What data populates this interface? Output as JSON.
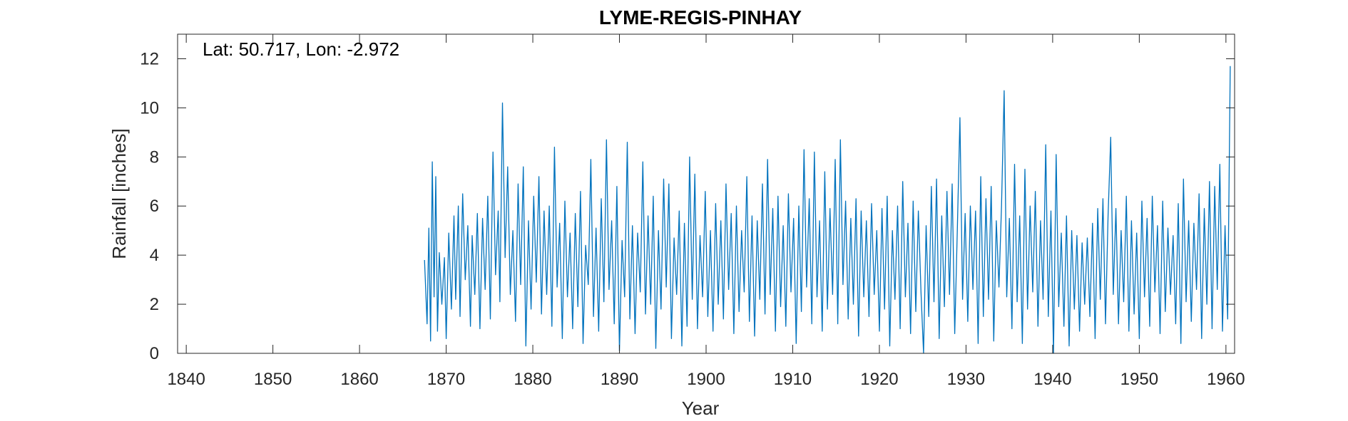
{
  "chart_data": {
    "type": "line",
    "title": "LYME-REGIS-PINHAY",
    "annotation": "Lat: 50.717, Lon: -2.972",
    "xlabel": "Year",
    "ylabel": "Rainfall [inches]",
    "xlim": [
      1839,
      1961
    ],
    "ylim": [
      0,
      13
    ],
    "xticks": [
      1840,
      1850,
      1860,
      1870,
      1880,
      1890,
      1900,
      1910,
      1920,
      1930,
      1940,
      1950,
      1960
    ],
    "yticks": [
      0,
      2,
      4,
      6,
      8,
      10,
      12
    ],
    "grid": false,
    "series": [
      {
        "color": "#0072BD",
        "data_start_year": 1867.5,
        "data_end_year": 1960.5,
        "points": [
          [
            1867.5,
            3.8
          ],
          [
            1867.8,
            1.2
          ],
          [
            1868.0,
            5.1
          ],
          [
            1868.2,
            0.5
          ],
          [
            1868.4,
            7.8
          ],
          [
            1868.6,
            2.3
          ],
          [
            1868.8,
            7.2
          ],
          [
            1869.0,
            0.9
          ],
          [
            1869.2,
            4.1
          ],
          [
            1869.5,
            2.0
          ],
          [
            1869.8,
            3.9
          ],
          [
            1870.0,
            0.6
          ],
          [
            1870.3,
            4.9
          ],
          [
            1870.6,
            1.8
          ],
          [
            1870.9,
            5.6
          ],
          [
            1871.1,
            2.2
          ],
          [
            1871.4,
            6.0
          ],
          [
            1871.6,
            1.5
          ],
          [
            1871.9,
            6.5
          ],
          [
            1872.2,
            3.0
          ],
          [
            1872.5,
            5.2
          ],
          [
            1872.8,
            1.1
          ],
          [
            1873.0,
            4.8
          ],
          [
            1873.3,
            2.4
          ],
          [
            1873.6,
            5.7
          ],
          [
            1873.9,
            1.0
          ],
          [
            1874.2,
            5.5
          ],
          [
            1874.5,
            2.6
          ],
          [
            1874.8,
            6.4
          ],
          [
            1875.1,
            1.4
          ],
          [
            1875.4,
            8.2
          ],
          [
            1875.7,
            3.2
          ],
          [
            1876.0,
            5.8
          ],
          [
            1876.2,
            2.1
          ],
          [
            1876.5,
            10.2
          ],
          [
            1876.8,
            3.9
          ],
          [
            1877.1,
            7.6
          ],
          [
            1877.4,
            2.4
          ],
          [
            1877.7,
            5.0
          ],
          [
            1878.0,
            1.3
          ],
          [
            1878.3,
            6.9
          ],
          [
            1878.6,
            2.8
          ],
          [
            1878.9,
            7.6
          ],
          [
            1879.2,
            0.3
          ],
          [
            1879.5,
            5.4
          ],
          [
            1879.8,
            1.8
          ],
          [
            1880.1,
            6.4
          ],
          [
            1880.4,
            2.9
          ],
          [
            1880.7,
            7.2
          ],
          [
            1881.0,
            1.6
          ],
          [
            1881.3,
            5.8
          ],
          [
            1881.6,
            2.4
          ],
          [
            1881.9,
            6.0
          ],
          [
            1882.2,
            1.1
          ],
          [
            1882.5,
            8.4
          ],
          [
            1882.8,
            2.7
          ],
          [
            1883.1,
            5.3
          ],
          [
            1883.4,
            0.6
          ],
          [
            1883.7,
            6.2
          ],
          [
            1884.0,
            2.3
          ],
          [
            1884.3,
            4.9
          ],
          [
            1884.6,
            1.0
          ],
          [
            1884.9,
            5.7
          ],
          [
            1885.2,
            1.9
          ],
          [
            1885.5,
            6.6
          ],
          [
            1885.8,
            0.4
          ],
          [
            1886.1,
            4.4
          ],
          [
            1886.4,
            2.8
          ],
          [
            1886.7,
            7.9
          ],
          [
            1887.0,
            1.5
          ],
          [
            1887.3,
            5.1
          ],
          [
            1887.6,
            0.9
          ],
          [
            1887.9,
            6.3
          ],
          [
            1888.2,
            2.1
          ],
          [
            1888.5,
            8.7
          ],
          [
            1888.8,
            2.6
          ],
          [
            1889.1,
            5.4
          ],
          [
            1889.4,
            1.2
          ],
          [
            1889.7,
            6.8
          ],
          [
            1890.0,
            0.1
          ],
          [
            1890.3,
            4.6
          ],
          [
            1890.6,
            2.3
          ],
          [
            1890.9,
            8.6
          ],
          [
            1891.2,
            1.4
          ],
          [
            1891.5,
            5.2
          ],
          [
            1891.8,
            0.8
          ],
          [
            1892.1,
            4.9
          ],
          [
            1892.4,
            2.5
          ],
          [
            1892.7,
            7.8
          ],
          [
            1893.0,
            1.6
          ],
          [
            1893.3,
            5.6
          ],
          [
            1893.6,
            2.0
          ],
          [
            1893.9,
            6.4
          ],
          [
            1894.2,
            0.2
          ],
          [
            1894.5,
            5.0
          ],
          [
            1894.8,
            1.8
          ],
          [
            1895.1,
            7.1
          ],
          [
            1895.4,
            2.7
          ],
          [
            1895.7,
            6.9
          ],
          [
            1896.0,
            0.6
          ],
          [
            1896.3,
            4.7
          ],
          [
            1896.6,
            2.4
          ],
          [
            1896.9,
            5.8
          ],
          [
            1897.2,
            0.3
          ],
          [
            1897.5,
            5.3
          ],
          [
            1897.8,
            1.1
          ],
          [
            1898.1,
            8.0
          ],
          [
            1898.4,
            2.2
          ],
          [
            1898.7,
            7.3
          ],
          [
            1899.0,
            1.0
          ],
          [
            1899.3,
            4.8
          ],
          [
            1899.6,
            2.3
          ],
          [
            1899.9,
            6.6
          ],
          [
            1900.2,
            1.5
          ],
          [
            1900.5,
            5.0
          ],
          [
            1900.8,
            0.9
          ],
          [
            1901.1,
            6.1
          ],
          [
            1901.4,
            2.0
          ],
          [
            1901.7,
            5.4
          ],
          [
            1902.0,
            1.4
          ],
          [
            1902.3,
            6.9
          ],
          [
            1902.6,
            2.6
          ],
          [
            1902.9,
            5.7
          ],
          [
            1903.2,
            0.8
          ],
          [
            1903.5,
            6.0
          ],
          [
            1903.8,
            1.7
          ],
          [
            1904.1,
            5.0
          ],
          [
            1904.4,
            2.5
          ],
          [
            1904.7,
            7.2
          ],
          [
            1905.0,
            1.3
          ],
          [
            1905.3,
            5.6
          ],
          [
            1905.6,
            0.7
          ],
          [
            1905.9,
            5.4
          ],
          [
            1906.2,
            2.2
          ],
          [
            1906.5,
            6.9
          ],
          [
            1906.8,
            1.6
          ],
          [
            1907.1,
            7.9
          ],
          [
            1907.4,
            2.4
          ],
          [
            1907.7,
            5.9
          ],
          [
            1908.0,
            0.9
          ],
          [
            1908.3,
            6.4
          ],
          [
            1908.6,
            1.9
          ],
          [
            1908.9,
            5.2
          ],
          [
            1909.2,
            1.1
          ],
          [
            1909.5,
            6.5
          ],
          [
            1909.8,
            2.5
          ],
          [
            1910.1,
            5.5
          ],
          [
            1910.4,
            0.4
          ],
          [
            1910.7,
            6.0
          ],
          [
            1911.0,
            1.7
          ],
          [
            1911.3,
            8.3
          ],
          [
            1911.6,
            2.7
          ],
          [
            1911.9,
            6.3
          ],
          [
            1912.2,
            1.2
          ],
          [
            1912.5,
            8.2
          ],
          [
            1912.8,
            2.3
          ],
          [
            1913.1,
            5.4
          ],
          [
            1913.4,
            0.9
          ],
          [
            1913.7,
            7.4
          ],
          [
            1914.0,
            1.8
          ],
          [
            1914.3,
            5.9
          ],
          [
            1914.6,
            2.4
          ],
          [
            1914.9,
            7.9
          ],
          [
            1915.2,
            1.2
          ],
          [
            1915.5,
            8.7
          ],
          [
            1915.8,
            2.8
          ],
          [
            1916.1,
            6.2
          ],
          [
            1916.4,
            1.4
          ],
          [
            1916.7,
            5.5
          ],
          [
            1917.0,
            2.0
          ],
          [
            1917.3,
            6.3
          ],
          [
            1917.6,
            0.7
          ],
          [
            1917.9,
            5.8
          ],
          [
            1918.2,
            2.3
          ],
          [
            1918.5,
            5.4
          ],
          [
            1918.8,
            1.5
          ],
          [
            1919.1,
            6.1
          ],
          [
            1919.4,
            2.4
          ],
          [
            1919.7,
            5.0
          ],
          [
            1920.0,
            0.9
          ],
          [
            1920.3,
            5.9
          ],
          [
            1920.6,
            1.8
          ],
          [
            1920.9,
            6.4
          ],
          [
            1921.2,
            0.3
          ],
          [
            1921.5,
            5.0
          ],
          [
            1921.8,
            2.2
          ],
          [
            1922.1,
            6.0
          ],
          [
            1922.4,
            1.0
          ],
          [
            1922.7,
            7.0
          ],
          [
            1923.0,
            2.3
          ],
          [
            1923.3,
            5.3
          ],
          [
            1923.6,
            0.8
          ],
          [
            1923.9,
            6.2
          ],
          [
            1924.2,
            1.7
          ],
          [
            1924.5,
            5.8
          ],
          [
            1924.8,
            2.5
          ],
          [
            1925.1,
            0.0
          ],
          [
            1925.4,
            5.2
          ],
          [
            1925.7,
            1.5
          ],
          [
            1926.0,
            6.8
          ],
          [
            1926.3,
            2.1
          ],
          [
            1926.6,
            7.1
          ],
          [
            1926.9,
            0.6
          ],
          [
            1927.2,
            5.6
          ],
          [
            1927.5,
            1.9
          ],
          [
            1927.8,
            6.6
          ],
          [
            1928.1,
            2.4
          ],
          [
            1928.4,
            6.9
          ],
          [
            1928.7,
            0.8
          ],
          [
            1929.0,
            5.1
          ],
          [
            1929.3,
            9.6
          ],
          [
            1929.6,
            2.2
          ],
          [
            1929.9,
            5.7
          ],
          [
            1930.2,
            1.3
          ],
          [
            1930.5,
            6.0
          ],
          [
            1930.8,
            2.6
          ],
          [
            1931.1,
            5.8
          ],
          [
            1931.4,
            0.4
          ],
          [
            1931.7,
            7.2
          ],
          [
            1932.0,
            1.5
          ],
          [
            1932.3,
            6.3
          ],
          [
            1932.6,
            2.2
          ],
          [
            1932.9,
            6.8
          ],
          [
            1933.2,
            0.5
          ],
          [
            1933.5,
            5.4
          ],
          [
            1933.8,
            2.7
          ],
          [
            1934.1,
            6.0
          ],
          [
            1934.4,
            10.7
          ],
          [
            1934.7,
            2.3
          ],
          [
            1935.0,
            5.5
          ],
          [
            1935.3,
            1.0
          ],
          [
            1935.6,
            7.7
          ],
          [
            1935.9,
            2.1
          ],
          [
            1936.2,
            5.6
          ],
          [
            1936.5,
            0.4
          ],
          [
            1936.8,
            7.5
          ],
          [
            1937.1,
            1.8
          ],
          [
            1937.4,
            6.0
          ],
          [
            1937.7,
            2.5
          ],
          [
            1938.0,
            6.6
          ],
          [
            1938.3,
            1.1
          ],
          [
            1938.6,
            5.4
          ],
          [
            1938.9,
            2.2
          ],
          [
            1939.2,
            8.5
          ],
          [
            1939.5,
            1.5
          ],
          [
            1939.8,
            5.8
          ],
          [
            1940.1,
            0.0
          ],
          [
            1940.4,
            8.1
          ],
          [
            1940.7,
            1.9
          ],
          [
            1941.0,
            4.9
          ],
          [
            1941.3,
            1.1
          ],
          [
            1941.6,
            5.6
          ],
          [
            1941.9,
            0.3
          ],
          [
            1942.2,
            5.0
          ],
          [
            1942.5,
            1.8
          ],
          [
            1942.8,
            4.8
          ],
          [
            1943.1,
            0.9
          ],
          [
            1943.4,
            4.5
          ],
          [
            1943.7,
            2.0
          ],
          [
            1944.0,
            4.7
          ],
          [
            1944.3,
            1.5
          ],
          [
            1944.6,
            5.3
          ],
          [
            1944.9,
            0.6
          ],
          [
            1945.2,
            5.9
          ],
          [
            1945.5,
            2.2
          ],
          [
            1945.8,
            6.3
          ],
          [
            1946.1,
            1.2
          ],
          [
            1946.4,
            5.6
          ],
          [
            1946.7,
            8.8
          ],
          [
            1947.0,
            2.4
          ],
          [
            1947.3,
            5.9
          ],
          [
            1947.6,
            1.2
          ],
          [
            1947.9,
            5.0
          ],
          [
            1948.2,
            2.1
          ],
          [
            1948.5,
            6.4
          ],
          [
            1948.8,
            0.9
          ],
          [
            1949.1,
            5.4
          ],
          [
            1949.4,
            1.6
          ],
          [
            1949.7,
            4.9
          ],
          [
            1950.0,
            0.6
          ],
          [
            1950.3,
            6.2
          ],
          [
            1950.6,
            2.3
          ],
          [
            1950.9,
            5.5
          ],
          [
            1951.2,
            1.1
          ],
          [
            1951.5,
            6.4
          ],
          [
            1951.8,
            2.5
          ],
          [
            1952.1,
            5.2
          ],
          [
            1952.4,
            0.8
          ],
          [
            1952.7,
            6.2
          ],
          [
            1953.0,
            1.7
          ],
          [
            1953.3,
            5.1
          ],
          [
            1953.6,
            2.4
          ],
          [
            1953.9,
            4.8
          ],
          [
            1954.2,
            1.2
          ],
          [
            1954.5,
            6.1
          ],
          [
            1954.8,
            0.4
          ],
          [
            1955.1,
            7.1
          ],
          [
            1955.4,
            2.1
          ],
          [
            1955.7,
            5.4
          ],
          [
            1956.0,
            1.3
          ],
          [
            1956.3,
            5.3
          ],
          [
            1956.6,
            2.6
          ],
          [
            1956.9,
            6.5
          ],
          [
            1957.2,
            0.6
          ],
          [
            1957.5,
            5.9
          ],
          [
            1957.8,
            2.0
          ],
          [
            1958.1,
            7.0
          ],
          [
            1958.4,
            1.0
          ],
          [
            1958.7,
            6.8
          ],
          [
            1959.0,
            2.6
          ],
          [
            1959.3,
            7.7
          ],
          [
            1959.6,
            0.9
          ],
          [
            1959.9,
            5.2
          ],
          [
            1960.2,
            1.4
          ],
          [
            1960.5,
            11.7
          ]
        ]
      }
    ]
  }
}
